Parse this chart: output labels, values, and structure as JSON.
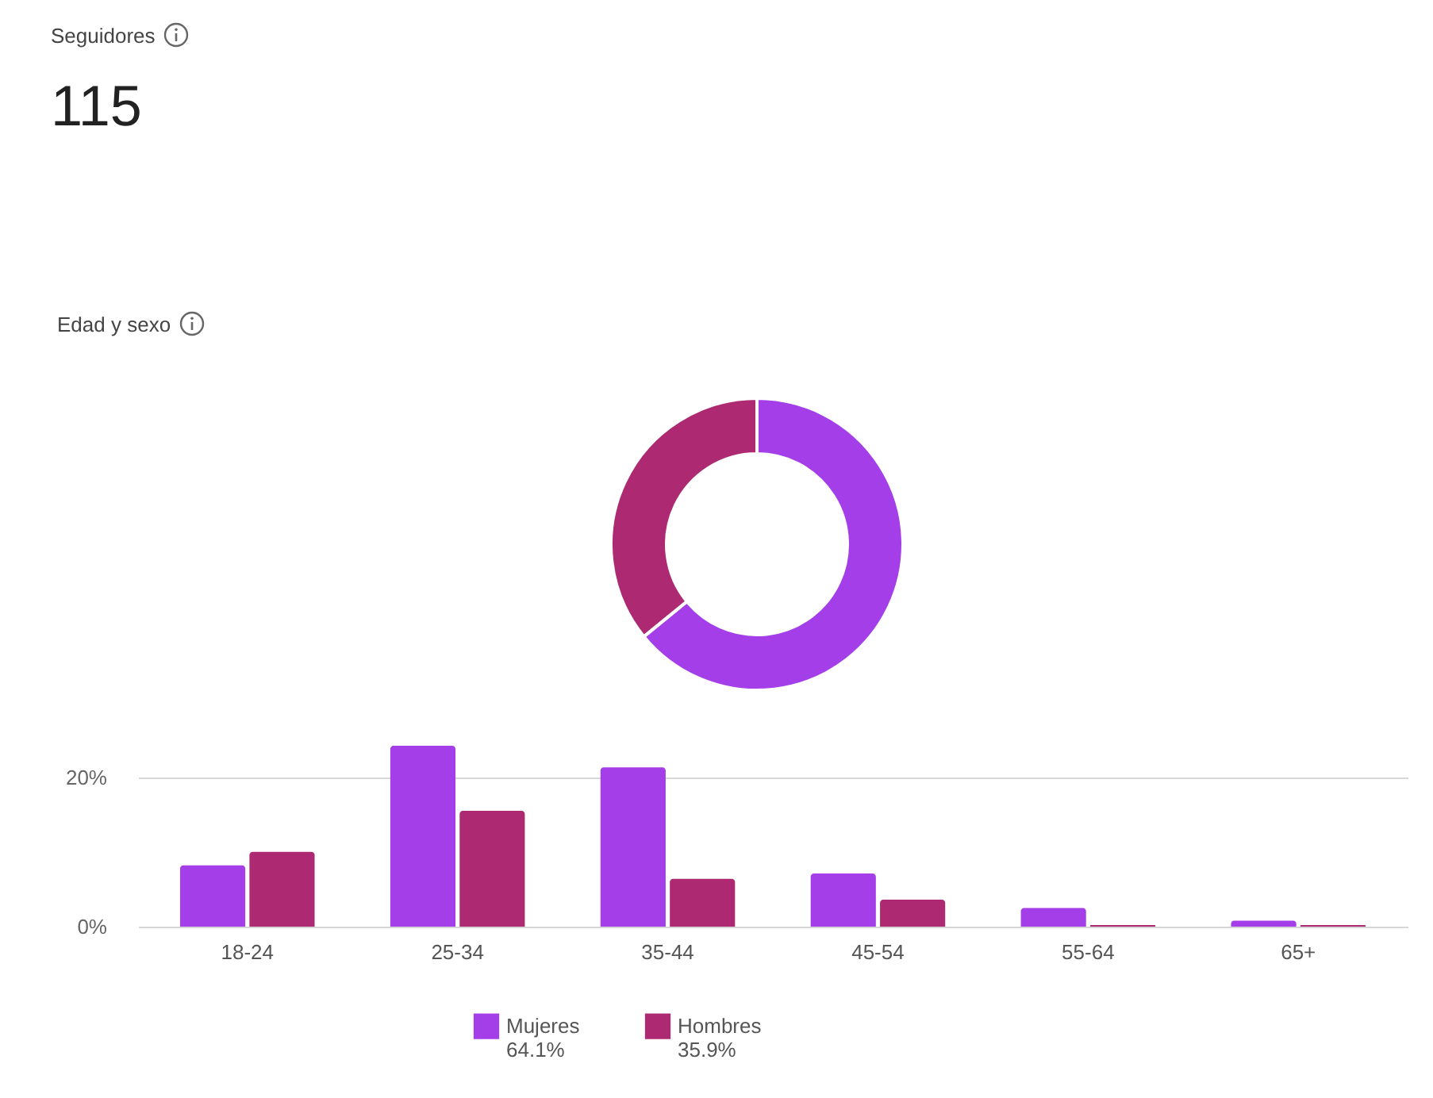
{
  "chart_data": [
    {
      "type": "other",
      "title": "Seguidores",
      "annotations": [
        "115",
        "Edad y sexo"
      ]
    },
    {
      "type": "donut",
      "categories": [
        "Mujeres",
        "Hombres"
      ],
      "values": [
        64.1,
        35.9
      ],
      "colors": [
        "#a33ee8",
        "#ad2a72"
      ],
      "value_labels": [
        "64.1%",
        "35.9%"
      ],
      "legend": "bottom"
    },
    {
      "type": "bar",
      "categories": [
        "18-24",
        "25-34",
        "35-44",
        "45-54",
        "55-64",
        "65+"
      ],
      "series": [
        {
          "color": "#a33ee8",
          "values": [
            8.2,
            24.2,
            21.3,
            7.1,
            2.5,
            0.8
          ]
        },
        {
          "color": "#ad2a72",
          "values": [
            10.0,
            15.5,
            6.4,
            3.6,
            0.2,
            0.2
          ]
        }
      ],
      "ylim": [
        0,
        24.2
      ],
      "yticks": [
        {
          "value": 0,
          "label": "0%"
        },
        {
          "value": 20,
          "label": "20%"
        }
      ],
      "grid": "y"
    }
  ]
}
